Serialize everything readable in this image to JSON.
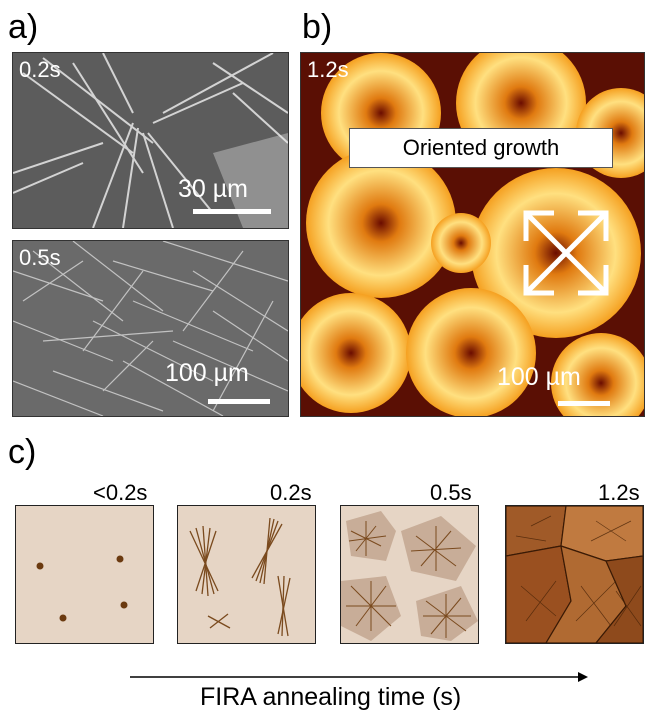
{
  "panel_a": {
    "label": "a)",
    "top": {
      "time": "0.2s",
      "scale": "30 µm"
    },
    "bottom": {
      "time": "0.5s",
      "scale": "100 µm"
    }
  },
  "panel_b": {
    "label": "b)",
    "time": "1.2s",
    "annotation": "Oriented growth",
    "scale": "100 µm"
  },
  "panel_c": {
    "label": "c)",
    "stages": [
      "<0.2s",
      "0.2s",
      "0.5s",
      "1.2s"
    ],
    "axis_label": "FIRA annealing time (s)"
  },
  "colors": {
    "schematic_bg": "#e6d5c5",
    "crystal": "#7a4a1e",
    "dot": "#6b3a10"
  }
}
